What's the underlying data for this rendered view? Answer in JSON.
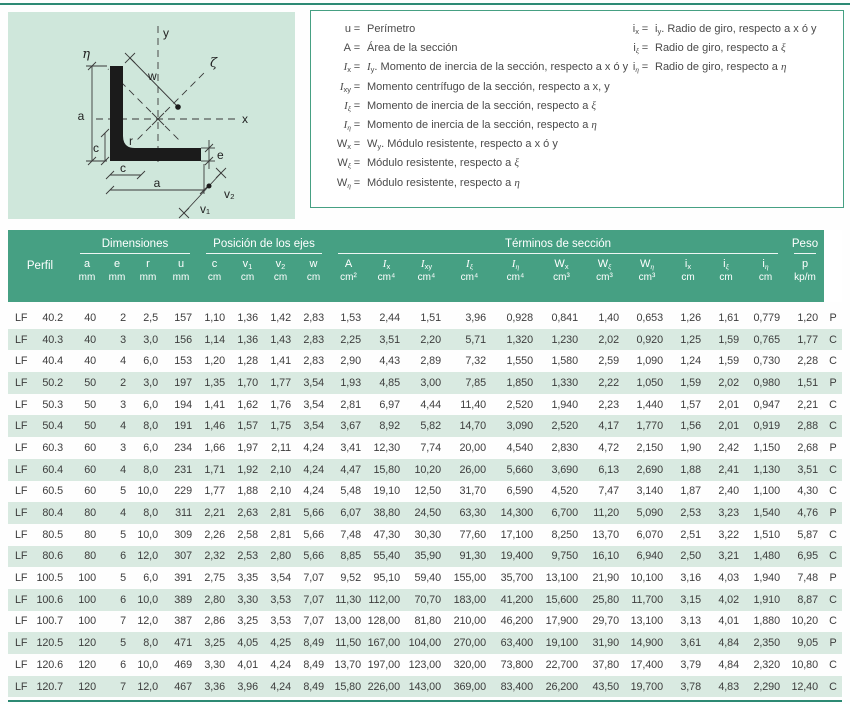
{
  "colors": {
    "teal_header": "#46a083",
    "teal_rule": "#2d8a74",
    "row_stripe": "#d9eae1",
    "diagram_bg": "#cfe7db",
    "text": "#3d3d3d"
  },
  "diagram": {
    "labels": {
      "eta": "η",
      "y": "y",
      "zeta": "ζ",
      "x": "x",
      "w": "w",
      "a_left": "a",
      "c_left": "c",
      "r": "r",
      "e": "e",
      "c_bottom": "c",
      "a_bottom": "a",
      "v2": "v₂",
      "v1": "v₁"
    }
  },
  "legend": {
    "eq": "=",
    "left": [
      {
        "sym": [
          {
            "t": "u"
          }
        ],
        "txt": [
          {
            "t": "Perímetro"
          }
        ]
      },
      {
        "sym": [
          {
            "t": "A"
          }
        ],
        "txt": [
          {
            "t": "Área de la sección"
          }
        ]
      },
      {
        "sym": [
          {
            "t": "I",
            "i": 1
          },
          {
            "t": "x",
            "s": 1
          }
        ],
        "txt": [
          {
            "t": "I",
            "i": 1
          },
          {
            "t": "y",
            "s": 1
          },
          {
            "t": ". Momento de inercia de la sección, respecto a x ó y"
          }
        ]
      },
      {
        "sym": [
          {
            "t": "I",
            "i": 1
          },
          {
            "t": "xy",
            "s": 1
          }
        ],
        "txt": [
          {
            "t": "Momento centrífugo de la sección, respecto a x, y"
          }
        ]
      },
      {
        "sym": [
          {
            "t": "I",
            "i": 1
          },
          {
            "t": "ξ",
            "s": 1,
            "i": 1
          }
        ],
        "txt": [
          {
            "t": "Momento de inercia de la sección, respecto a "
          },
          {
            "t": "ξ",
            "i": 1
          }
        ]
      },
      {
        "sym": [
          {
            "t": "I",
            "i": 1
          },
          {
            "t": "η",
            "s": 1,
            "i": 1
          }
        ],
        "txt": [
          {
            "t": "Momento de inercia de la sección, respecto a "
          },
          {
            "t": "η",
            "i": 1
          }
        ]
      },
      {
        "sym": [
          {
            "t": "W"
          },
          {
            "t": "x",
            "s": 1
          }
        ],
        "txt": [
          {
            "t": "W"
          },
          {
            "t": "y",
            "s": 1
          },
          {
            "t": ". Módulo resistente, respecto a x ó y"
          }
        ]
      },
      {
        "sym": [
          {
            "t": "W"
          },
          {
            "t": "ξ",
            "s": 1,
            "i": 1
          }
        ],
        "txt": [
          {
            "t": "Módulo resistente, respecto a "
          },
          {
            "t": "ξ",
            "i": 1
          }
        ]
      },
      {
        "sym": [
          {
            "t": "W"
          },
          {
            "t": "η",
            "s": 1,
            "i": 1
          }
        ],
        "txt": [
          {
            "t": "Módulo resistente, respecto a "
          },
          {
            "t": "η",
            "i": 1
          }
        ]
      }
    ],
    "right": [
      {
        "sym": [
          {
            "t": "i"
          },
          {
            "t": "x",
            "s": 1
          }
        ],
        "txt": [
          {
            "t": "i"
          },
          {
            "t": "y",
            "s": 1
          },
          {
            "t": ". Radio de giro, respecto a x ó y"
          }
        ]
      },
      {
        "sym": [
          {
            "t": "i"
          },
          {
            "t": "ξ",
            "s": 1,
            "i": 1
          }
        ],
        "txt": [
          {
            "t": "Radio de giro, respecto a "
          },
          {
            "t": "ξ",
            "i": 1
          }
        ]
      },
      {
        "sym": [
          {
            "t": "i"
          },
          {
            "t": "η",
            "s": 1,
            "i": 1
          }
        ],
        "txt": [
          {
            "t": "Radio de giro, respecto a "
          },
          {
            "t": "η",
            "i": 1
          }
        ]
      }
    ]
  },
  "table": {
    "perfil_label": "Perfil",
    "groups": [
      {
        "label": "Dimensiones",
        "span": 4
      },
      {
        "label": "Posición de los ejes",
        "span": 4
      },
      {
        "label": "Términos de sección",
        "span": 11
      },
      {
        "label": "Peso",
        "span": 1
      }
    ],
    "columns": [
      {
        "main": [
          {
            "t": "a"
          }
        ],
        "unit": "mm"
      },
      {
        "main": [
          {
            "t": "e"
          }
        ],
        "unit": "mm"
      },
      {
        "main": [
          {
            "t": "r"
          }
        ],
        "unit": "mm"
      },
      {
        "main": [
          {
            "t": "u"
          }
        ],
        "unit": "mm"
      },
      {
        "main": [
          {
            "t": "c"
          }
        ],
        "unit": "cm"
      },
      {
        "main": [
          {
            "t": "v"
          },
          {
            "t": "1",
            "s": 1
          }
        ],
        "unit": "cm"
      },
      {
        "main": [
          {
            "t": "v"
          },
          {
            "t": "2",
            "s": 1
          }
        ],
        "unit": "cm"
      },
      {
        "main": [
          {
            "t": "w"
          }
        ],
        "unit": "cm"
      },
      {
        "main": [
          {
            "t": "A"
          }
        ],
        "unit": "cm²"
      },
      {
        "main": [
          {
            "t": "I",
            "i": 1
          },
          {
            "t": "x",
            "s": 1
          }
        ],
        "unit": "cm⁴"
      },
      {
        "main": [
          {
            "t": "I",
            "i": 1
          },
          {
            "t": "xy",
            "s": 1
          }
        ],
        "unit": "cm⁴"
      },
      {
        "main": [
          {
            "t": "I",
            "i": 1
          },
          {
            "t": "ξ",
            "s": 1,
            "i": 1
          }
        ],
        "unit": "cm⁴"
      },
      {
        "main": [
          {
            "t": "I",
            "i": 1
          },
          {
            "t": "η",
            "s": 1,
            "i": 1
          }
        ],
        "unit": "cm⁴"
      },
      {
        "main": [
          {
            "t": "W"
          },
          {
            "t": "x",
            "s": 1
          }
        ],
        "unit": "cm³"
      },
      {
        "main": [
          {
            "t": "W"
          },
          {
            "t": "ξ",
            "s": 1,
            "i": 1
          }
        ],
        "unit": "cm³"
      },
      {
        "main": [
          {
            "t": "W"
          },
          {
            "t": "η",
            "s": 1,
            "i": 1
          }
        ],
        "unit": "cm³"
      },
      {
        "main": [
          {
            "t": "i"
          },
          {
            "t": "x",
            "s": 1
          }
        ],
        "unit": "cm"
      },
      {
        "main": [
          {
            "t": "i"
          },
          {
            "t": "ξ",
            "s": 1,
            "i": 1
          }
        ],
        "unit": "cm"
      },
      {
        "main": [
          {
            "t": "i"
          },
          {
            "t": "η",
            "s": 1,
            "i": 1
          }
        ],
        "unit": "cm"
      },
      {
        "main": [
          {
            "t": "p"
          }
        ],
        "unit": "kp/m"
      }
    ],
    "rows": [
      {
        "profile_prefix": "LF",
        "profile_size": "40.2",
        "values": [
          "40",
          "2",
          "2,5",
          "157",
          "1,10",
          "1,36",
          "1,42",
          "2,83",
          "1,53",
          "2,44",
          "1,51",
          "3,96",
          "0,928",
          "0,841",
          "1,40",
          "0,653",
          "1,26",
          "1,61",
          "0,779",
          "1,20"
        ],
        "status": "P"
      },
      {
        "profile_prefix": "LF",
        "profile_size": "40.3",
        "values": [
          "40",
          "3",
          "3,0",
          "156",
          "1,14",
          "1,36",
          "1,43",
          "2,83",
          "2,25",
          "3,51",
          "2,20",
          "5,71",
          "1,320",
          "1,230",
          "2,02",
          "0,920",
          "1,25",
          "1,59",
          "0,765",
          "1,77"
        ],
        "status": "C"
      },
      {
        "profile_prefix": "LF",
        "profile_size": "40.4",
        "values": [
          "40",
          "4",
          "6,0",
          "153",
          "1,20",
          "1,28",
          "1,41",
          "2,83",
          "2,90",
          "4,43",
          "2,89",
          "7,32",
          "1,550",
          "1,580",
          "2,59",
          "1,090",
          "1,24",
          "1,59",
          "0,730",
          "2,28"
        ],
        "status": "C"
      },
      {
        "profile_prefix": "LF",
        "profile_size": "50.2",
        "values": [
          "50",
          "2",
          "3,0",
          "197",
          "1,35",
          "1,70",
          "1,77",
          "3,54",
          "1,93",
          "4,85",
          "3,00",
          "7,85",
          "1,850",
          "1,330",
          "2,22",
          "1,050",
          "1,59",
          "2,02",
          "0,980",
          "1,51"
        ],
        "status": "P"
      },
      {
        "profile_prefix": "LF",
        "profile_size": "50.3",
        "values": [
          "50",
          "3",
          "6,0",
          "194",
          "1,41",
          "1,62",
          "1,76",
          "3,54",
          "2,81",
          "6,97",
          "4,44",
          "11,40",
          "2,520",
          "1,940",
          "2,23",
          "1,440",
          "1,57",
          "2,01",
          "0,947",
          "2,21"
        ],
        "status": "C"
      },
      {
        "profile_prefix": "LF",
        "profile_size": "50.4",
        "values": [
          "50",
          "4",
          "8,0",
          "191",
          "1,46",
          "1,57",
          "1,75",
          "3,54",
          "3,67",
          "8,92",
          "5,82",
          "14,70",
          "3,090",
          "2,520",
          "4,17",
          "1,770",
          "1,56",
          "2,01",
          "0,919",
          "2,88"
        ],
        "status": "C"
      },
      {
        "profile_prefix": "LF",
        "profile_size": "60.3",
        "values": [
          "60",
          "3",
          "6,0",
          "234",
          "1,66",
          "1,97",
          "2,11",
          "4,24",
          "3,41",
          "12,30",
          "7,74",
          "20,00",
          "4,540",
          "2,830",
          "4,72",
          "2,150",
          "1,90",
          "2,42",
          "1,150",
          "2,68"
        ],
        "status": "P"
      },
      {
        "profile_prefix": "LF",
        "profile_size": "60.4",
        "values": [
          "60",
          "4",
          "8,0",
          "231",
          "1,71",
          "1,92",
          "2,10",
          "4,24",
          "4,47",
          "15,80",
          "10,20",
          "26,00",
          "5,660",
          "3,690",
          "6,13",
          "2,690",
          "1,88",
          "2,41",
          "1,130",
          "3,51"
        ],
        "status": "C"
      },
      {
        "profile_prefix": "LF",
        "profile_size": "60.5",
        "values": [
          "60",
          "5",
          "10,0",
          "229",
          "1,77",
          "1,88",
          "2,10",
          "4,24",
          "5,48",
          "19,10",
          "12,50",
          "31,70",
          "6,590",
          "4,520",
          "7,47",
          "3,140",
          "1,87",
          "2,40",
          "1,100",
          "4,30"
        ],
        "status": "C"
      },
      {
        "profile_prefix": "LF",
        "profile_size": "80.4",
        "values": [
          "80",
          "4",
          "8,0",
          "311",
          "2,21",
          "2,63",
          "2,81",
          "5,66",
          "6,07",
          "38,80",
          "24,50",
          "63,30",
          "14,300",
          "6,700",
          "11,20",
          "5,090",
          "2,53",
          "3,23",
          "1,540",
          "4,76"
        ],
        "status": "P"
      },
      {
        "profile_prefix": "LF",
        "profile_size": "80.5",
        "values": [
          "80",
          "5",
          "10,0",
          "309",
          "2,26",
          "2,58",
          "2,81",
          "5,66",
          "7,48",
          "47,30",
          "30,30",
          "77,60",
          "17,100",
          "8,250",
          "13,70",
          "6,070",
          "2,51",
          "3,22",
          "1,510",
          "5,87"
        ],
        "status": "C"
      },
      {
        "profile_prefix": "LF",
        "profile_size": "80.6",
        "values": [
          "80",
          "6",
          "12,0",
          "307",
          "2,32",
          "2,53",
          "2,80",
          "5,66",
          "8,85",
          "55,40",
          "35,90",
          "91,30",
          "19,400",
          "9,750",
          "16,10",
          "6,940",
          "2,50",
          "3,21",
          "1,480",
          "6,95"
        ],
        "status": "C"
      },
      {
        "profile_prefix": "LF",
        "profile_size": "100.5",
        "values": [
          "100",
          "5",
          "6,0",
          "391",
          "2,75",
          "3,35",
          "3,54",
          "7,07",
          "9,52",
          "95,10",
          "59,40",
          "155,00",
          "35,700",
          "13,100",
          "21,90",
          "10,100",
          "3,16",
          "4,03",
          "1,940",
          "7,48"
        ],
        "status": "P"
      },
      {
        "profile_prefix": "LF",
        "profile_size": "100.6",
        "values": [
          "100",
          "6",
          "10,0",
          "389",
          "2,80",
          "3,30",
          "3,53",
          "7,07",
          "11,30",
          "112,00",
          "70,70",
          "183,00",
          "41,200",
          "15,600",
          "25,80",
          "11,700",
          "3,15",
          "4,02",
          "1,910",
          "8,87"
        ],
        "status": "C"
      },
      {
        "profile_prefix": "LF",
        "profile_size": "100.7",
        "values": [
          "100",
          "7",
          "12,0",
          "387",
          "2,86",
          "3,25",
          "3,53",
          "7,07",
          "13,00",
          "128,00",
          "81,80",
          "210,00",
          "46,200",
          "17,900",
          "29,70",
          "13,100",
          "3,13",
          "4,01",
          "1,880",
          "10,20"
        ],
        "status": "C"
      },
      {
        "profile_prefix": "LF",
        "profile_size": "120.5",
        "values": [
          "120",
          "5",
          "8,0",
          "471",
          "3,25",
          "4,05",
          "4,25",
          "8,49",
          "11,50",
          "167,00",
          "104,00",
          "270,00",
          "63,400",
          "19,100",
          "31,90",
          "14,900",
          "3,61",
          "4,84",
          "2,350",
          "9,05"
        ],
        "status": "P"
      },
      {
        "profile_prefix": "LF",
        "profile_size": "120.6",
        "values": [
          "120",
          "6",
          "10,0",
          "469",
          "3,30",
          "4,01",
          "4,24",
          "8,49",
          "13,70",
          "197,00",
          "123,00",
          "320,00",
          "73,800",
          "22,700",
          "37,80",
          "17,400",
          "3,79",
          "4,84",
          "2,320",
          "10,80"
        ],
        "status": "C"
      },
      {
        "profile_prefix": "LF",
        "profile_size": "120.7",
        "values": [
          "120",
          "7",
          "12,0",
          "467",
          "3,36",
          "3,96",
          "4,24",
          "8,49",
          "15,80",
          "226,00",
          "143,00",
          "369,00",
          "83,400",
          "26,200",
          "43,50",
          "19,700",
          "3,78",
          "4,83",
          "2,290",
          "12,40"
        ],
        "status": "C"
      }
    ]
  }
}
